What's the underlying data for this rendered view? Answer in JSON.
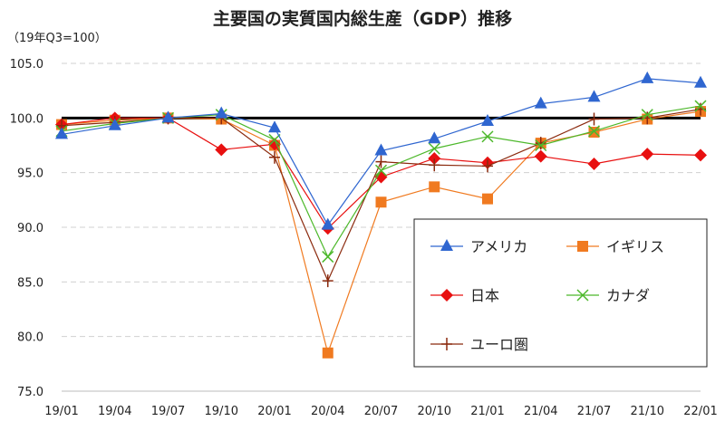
{
  "chart_data": {
    "type": "line",
    "title": "主要国の実質国内総生産（GDP）推移",
    "ylabel": "（19年Q3=100）",
    "xlabel": "",
    "ylim": [
      75,
      105
    ],
    "yticks": [
      "75.0",
      "80.0",
      "85.0",
      "90.0",
      "95.0",
      "100.0",
      "105.0"
    ],
    "grid": "horizontal dashed",
    "reference_line": 100,
    "legend_position": "bottom-right inside",
    "categories": [
      "19/01",
      "19/04",
      "19/07",
      "19/10",
      "20/01",
      "20/04",
      "20/07",
      "20/10",
      "21/01",
      "21/04",
      "21/07",
      "21/10",
      "22/01"
    ],
    "series": [
      {
        "name": "アメリカ",
        "color": "#2F66D0",
        "marker": "triangle",
        "values": [
          98.5,
          99.3,
          100,
          100.4,
          99.1,
          90.2,
          97.0,
          98.1,
          99.7,
          101.3,
          101.9,
          103.6,
          103.2
        ]
      },
      {
        "name": "イギリス",
        "color": "#F07A20",
        "marker": "square",
        "values": [
          99.4,
          99.8,
          100,
          99.9,
          97.5,
          78.5,
          92.3,
          93.7,
          92.6,
          97.7,
          98.7,
          99.9,
          100.6
        ]
      },
      {
        "name": "日本",
        "color": "#E81010",
        "marker": "diamond",
        "values": [
          99.4,
          100.0,
          100,
          97.1,
          97.6,
          89.9,
          94.6,
          96.3,
          95.9,
          96.5,
          95.8,
          96.7,
          96.6
        ]
      },
      {
        "name": "カナダ",
        "color": "#4CB82A",
        "marker": "x",
        "values": [
          98.8,
          99.5,
          100,
          100.3,
          98.0,
          87.3,
          95.2,
          97.2,
          98.3,
          97.5,
          98.8,
          100.3,
          101.1
        ]
      },
      {
        "name": "ユーロ圏",
        "color": "#8B2A0E",
        "marker": "plus",
        "values": [
          99.3,
          99.6,
          100,
          100.0,
          96.4,
          85.1,
          96.0,
          95.7,
          95.6,
          97.7,
          99.9,
          100.0,
          100.8
        ]
      }
    ]
  }
}
